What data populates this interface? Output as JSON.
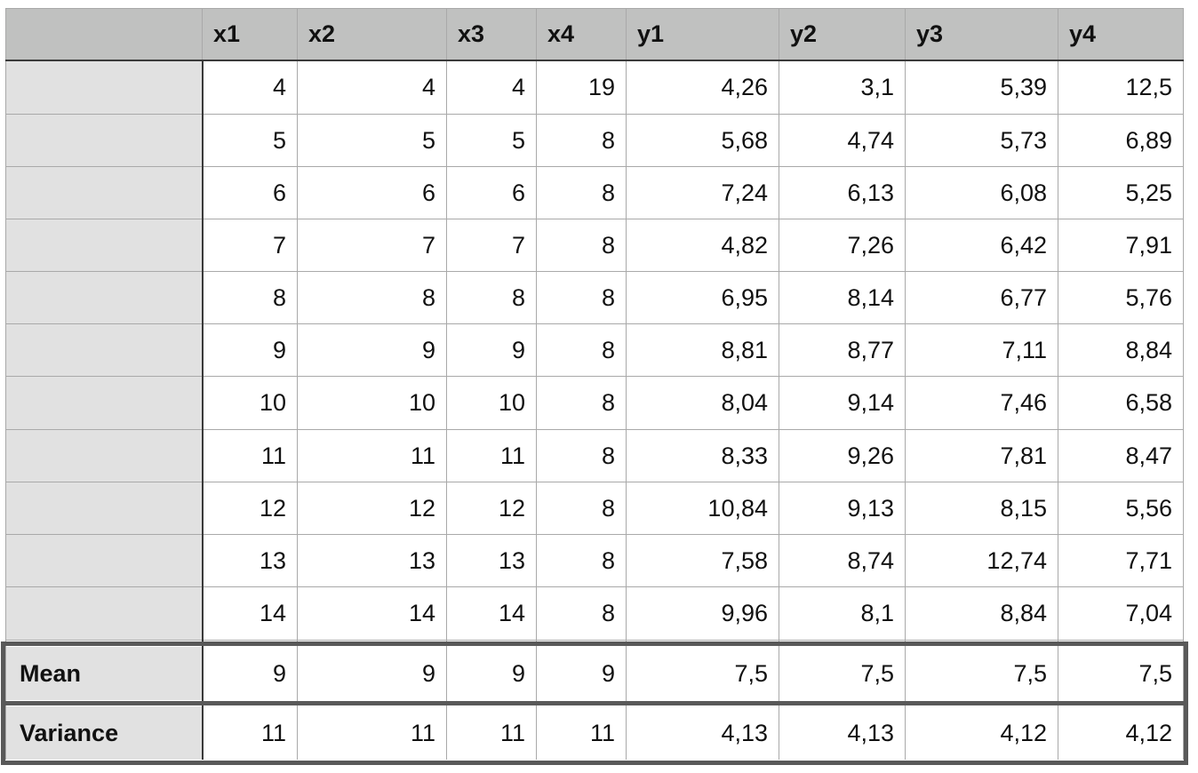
{
  "columns": [
    "",
    "x1",
    "x2",
    "x3",
    "x4",
    "y1",
    "y2",
    "y3",
    "y4"
  ],
  "rows": [
    {
      "label": "",
      "values": [
        "4",
        "4",
        "4",
        "19",
        "4,26",
        "3,1",
        "5,39",
        "12,5"
      ]
    },
    {
      "label": "",
      "values": [
        "5",
        "5",
        "5",
        "8",
        "5,68",
        "4,74",
        "5,73",
        "6,89"
      ]
    },
    {
      "label": "",
      "values": [
        "6",
        "6",
        "6",
        "8",
        "7,24",
        "6,13",
        "6,08",
        "5,25"
      ]
    },
    {
      "label": "",
      "values": [
        "7",
        "7",
        "7",
        "8",
        "4,82",
        "7,26",
        "6,42",
        "7,91"
      ]
    },
    {
      "label": "",
      "values": [
        "8",
        "8",
        "8",
        "8",
        "6,95",
        "8,14",
        "6,77",
        "5,76"
      ]
    },
    {
      "label": "",
      "values": [
        "9",
        "9",
        "9",
        "8",
        "8,81",
        "8,77",
        "7,11",
        "8,84"
      ]
    },
    {
      "label": "",
      "values": [
        "10",
        "10",
        "10",
        "8",
        "8,04",
        "9,14",
        "7,46",
        "6,58"
      ]
    },
    {
      "label": "",
      "values": [
        "11",
        "11",
        "11",
        "8",
        "8,33",
        "9,26",
        "7,81",
        "8,47"
      ]
    },
    {
      "label": "",
      "values": [
        "12",
        "12",
        "12",
        "8",
        "10,84",
        "9,13",
        "8,15",
        "5,56"
      ]
    },
    {
      "label": "",
      "values": [
        "13",
        "13",
        "13",
        "8",
        "7,58",
        "8,74",
        "12,74",
        "7,71"
      ]
    },
    {
      "label": "",
      "values": [
        "14",
        "14",
        "14",
        "8",
        "9,96",
        "8,1",
        "8,84",
        "7,04"
      ]
    }
  ],
  "summary": [
    {
      "label": "Mean",
      "values": [
        "9",
        "9",
        "9",
        "9",
        "7,5",
        "7,5",
        "7,5",
        "7,5"
      ]
    },
    {
      "label": "Variance",
      "values": [
        "11",
        "11",
        "11",
        "11",
        "4,13",
        "4,13",
        "4,12",
        "4,12"
      ]
    }
  ]
}
